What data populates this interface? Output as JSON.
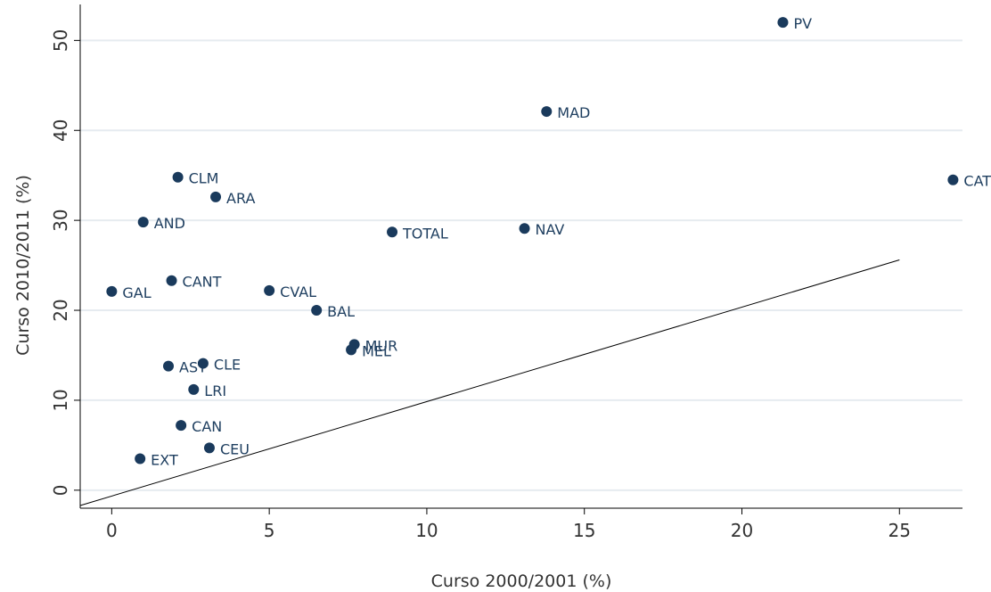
{
  "chart_data": {
    "type": "scatter",
    "title": "",
    "xlabel": "Curso 2000/2001 (%)",
    "ylabel": "Curso 2010/2011 (%)",
    "xlim": [
      -1,
      27
    ],
    "ylim": [
      -2,
      54
    ],
    "xticks": [
      0,
      5,
      10,
      15,
      20,
      25
    ],
    "yticks": [
      0,
      10,
      20,
      30,
      40,
      50
    ],
    "grid": true,
    "marker_color": "#1a3a5c",
    "points": [
      {
        "label": "PV",
        "x": 21.3,
        "y": 52.0
      },
      {
        "label": "MAD",
        "x": 13.8,
        "y": 42.1
      },
      {
        "label": "CAT",
        "x": 26.7,
        "y": 34.5
      },
      {
        "label": "CLM",
        "x": 2.1,
        "y": 34.8
      },
      {
        "label": "ARA",
        "x": 3.3,
        "y": 32.6
      },
      {
        "label": "AND",
        "x": 1.0,
        "y": 29.8
      },
      {
        "label": "TOTAL",
        "x": 8.9,
        "y": 28.7
      },
      {
        "label": "NAV",
        "x": 13.1,
        "y": 29.1
      },
      {
        "label": "GAL",
        "x": 0.0,
        "y": 22.1
      },
      {
        "label": "CANT",
        "x": 1.9,
        "y": 23.3
      },
      {
        "label": "CVAL",
        "x": 5.0,
        "y": 22.2
      },
      {
        "label": "BAL",
        "x": 6.5,
        "y": 20.0
      },
      {
        "label": "MUR",
        "x": 7.7,
        "y": 16.2
      },
      {
        "label": "MEL",
        "x": 7.6,
        "y": 15.6
      },
      {
        "label": "AST",
        "x": 1.8,
        "y": 13.8
      },
      {
        "label": "CLE",
        "x": 2.9,
        "y": 14.1
      },
      {
        "label": "LRI",
        "x": 2.6,
        "y": 11.2
      },
      {
        "label": "CAN",
        "x": 2.2,
        "y": 7.2
      },
      {
        "label": "CEU",
        "x": 3.1,
        "y": 4.7
      },
      {
        "label": "EXT",
        "x": 0.9,
        "y": 3.5
      }
    ],
    "reference_line": {
      "x": [
        -1,
        25
      ],
      "y": [
        -1.7,
        25.6
      ]
    }
  }
}
